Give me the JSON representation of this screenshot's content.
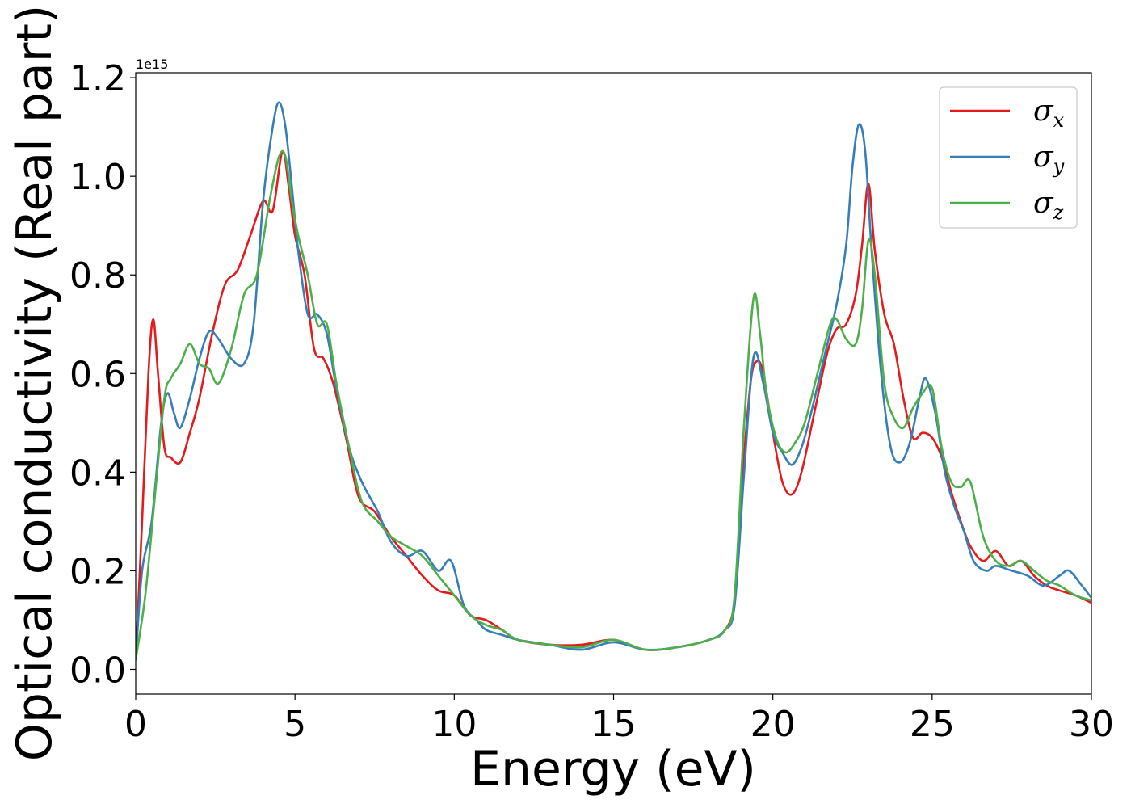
{
  "chart_data": {
    "type": "line",
    "xlabel": "Energy (eV)",
    "ylabel": "Optical conductivity (Real part)",
    "y_offset_label": "1e15",
    "xlim": [
      0,
      30
    ],
    "ylim": [
      -0.05,
      1.21
    ],
    "xticks": [
      0,
      5,
      10,
      15,
      20,
      25,
      30
    ],
    "xtick_labels": [
      "0",
      "5",
      "10",
      "15",
      "20",
      "25",
      "30"
    ],
    "yticks": [
      0.0,
      0.2,
      0.4,
      0.6,
      0.8,
      1.0,
      1.2
    ],
    "ytick_labels": [
      "0.0",
      "0.2",
      "0.4",
      "0.6",
      "0.8",
      "1.0",
      "1.2"
    ],
    "grid": false,
    "legend_position": "top-right",
    "series": [
      {
        "name": "σ",
        "subscript": "x",
        "color": "#e41a1c",
        "x": [
          0,
          0.2,
          0.4,
          0.55,
          0.7,
          0.9,
          1.1,
          1.4,
          1.7,
          2.0,
          2.4,
          2.8,
          3.2,
          3.6,
          4.0,
          4.3,
          4.6,
          4.8,
          5.0,
          5.3,
          5.6,
          5.9,
          6.2,
          6.6,
          7.0,
          7.5,
          8.0,
          8.5,
          9.0,
          9.5,
          10.0,
          10.5,
          11.0,
          11.5,
          12.0,
          13.0,
          14.0,
          15.0,
          16.0,
          17.0,
          18.0,
          18.5,
          18.8,
          19.0,
          19.3,
          19.5,
          19.7,
          20.0,
          20.3,
          20.6,
          20.9,
          21.3,
          21.7,
          22.0,
          22.3,
          22.6,
          22.8,
          23.0,
          23.2,
          23.5,
          23.8,
          24.1,
          24.4,
          24.7,
          25.0,
          25.3,
          25.6,
          25.9,
          26.2,
          26.6,
          27.0,
          27.4,
          27.8,
          28.2,
          28.6,
          29.0,
          29.5,
          30.0
        ],
        "y": [
          0.02,
          0.3,
          0.6,
          0.71,
          0.6,
          0.45,
          0.43,
          0.42,
          0.48,
          0.55,
          0.68,
          0.78,
          0.81,
          0.88,
          0.95,
          0.93,
          1.05,
          0.98,
          0.88,
          0.8,
          0.65,
          0.63,
          0.58,
          0.47,
          0.35,
          0.32,
          0.27,
          0.23,
          0.19,
          0.16,
          0.15,
          0.11,
          0.1,
          0.08,
          0.06,
          0.05,
          0.05,
          0.06,
          0.04,
          0.045,
          0.06,
          0.08,
          0.14,
          0.35,
          0.58,
          0.625,
          0.6,
          0.48,
          0.38,
          0.355,
          0.4,
          0.52,
          0.64,
          0.69,
          0.7,
          0.76,
          0.86,
          0.985,
          0.85,
          0.72,
          0.66,
          0.55,
          0.47,
          0.48,
          0.47,
          0.43,
          0.36,
          0.3,
          0.25,
          0.22,
          0.24,
          0.21,
          0.22,
          0.19,
          0.17,
          0.16,
          0.15,
          0.135
        ]
      },
      {
        "name": "σ",
        "subscript": "y",
        "color": "#377eb8",
        "x": [
          0,
          0.2,
          0.5,
          0.8,
          1.0,
          1.2,
          1.4,
          1.7,
          2.0,
          2.3,
          2.6,
          3.0,
          3.4,
          3.7,
          4.0,
          4.3,
          4.5,
          4.7,
          4.9,
          5.1,
          5.4,
          5.7,
          6.0,
          6.3,
          6.7,
          7.1,
          7.6,
          8.0,
          8.5,
          9.0,
          9.5,
          9.9,
          10.3,
          10.7,
          11.0,
          11.5,
          12.0,
          13.0,
          14.0,
          15.0,
          16.0,
          17.0,
          18.0,
          18.5,
          18.8,
          19.1,
          19.4,
          19.7,
          20.0,
          20.3,
          20.6,
          20.9,
          21.2,
          21.6,
          22.0,
          22.3,
          22.5,
          22.7,
          22.9,
          23.1,
          23.4,
          23.7,
          24.0,
          24.3,
          24.6,
          24.8,
          25.1,
          25.4,
          25.7,
          26.0,
          26.3,
          26.7,
          27.0,
          27.5,
          28.0,
          28.5,
          29.0,
          29.3,
          29.7,
          30.0
        ],
        "y": [
          0.02,
          0.2,
          0.3,
          0.5,
          0.56,
          0.52,
          0.49,
          0.55,
          0.63,
          0.685,
          0.67,
          0.63,
          0.62,
          0.7,
          0.95,
          1.1,
          1.15,
          1.1,
          0.98,
          0.85,
          0.72,
          0.72,
          0.68,
          0.57,
          0.45,
          0.38,
          0.32,
          0.26,
          0.23,
          0.24,
          0.2,
          0.22,
          0.13,
          0.1,
          0.08,
          0.07,
          0.06,
          0.05,
          0.04,
          0.055,
          0.04,
          0.045,
          0.06,
          0.08,
          0.13,
          0.4,
          0.635,
          0.58,
          0.48,
          0.44,
          0.415,
          0.45,
          0.52,
          0.63,
          0.74,
          0.86,
          1.02,
          1.105,
          1.05,
          0.85,
          0.6,
          0.45,
          0.42,
          0.46,
          0.55,
          0.59,
          0.52,
          0.4,
          0.33,
          0.28,
          0.22,
          0.2,
          0.21,
          0.2,
          0.19,
          0.17,
          0.19,
          0.2,
          0.17,
          0.145
        ]
      },
      {
        "name": "σ",
        "subscript": "z",
        "color": "#4daf4a",
        "x": [
          0,
          0.3,
          0.6,
          0.9,
          1.1,
          1.4,
          1.7,
          2.0,
          2.3,
          2.6,
          3.0,
          3.4,
          3.8,
          4.2,
          4.5,
          4.7,
          4.9,
          5.1,
          5.4,
          5.7,
          6.0,
          6.3,
          6.7,
          7.1,
          7.6,
          8.0,
          8.5,
          9.0,
          9.5,
          10.0,
          10.5,
          11.0,
          11.5,
          12.0,
          13.0,
          14.0,
          15.0,
          16.0,
          17.0,
          18.0,
          18.5,
          18.8,
          19.1,
          19.4,
          19.6,
          19.8,
          20.1,
          20.4,
          20.7,
          21.0,
          21.4,
          21.8,
          22.0,
          22.3,
          22.6,
          22.8,
          23.0,
          23.2,
          23.5,
          23.8,
          24.1,
          24.4,
          24.7,
          25.0,
          25.3,
          25.6,
          25.9,
          26.2,
          26.6,
          27.0,
          27.4,
          27.8,
          28.2,
          28.6,
          29.0,
          29.5,
          30.0
        ],
        "y": [
          0.02,
          0.15,
          0.35,
          0.55,
          0.59,
          0.62,
          0.66,
          0.62,
          0.61,
          0.58,
          0.65,
          0.76,
          0.8,
          0.95,
          1.04,
          1.04,
          0.95,
          0.88,
          0.8,
          0.7,
          0.7,
          0.58,
          0.45,
          0.34,
          0.3,
          0.27,
          0.25,
          0.23,
          0.19,
          0.15,
          0.11,
          0.09,
          0.08,
          0.06,
          0.05,
          0.045,
          0.06,
          0.04,
          0.045,
          0.06,
          0.08,
          0.15,
          0.5,
          0.755,
          0.68,
          0.56,
          0.47,
          0.44,
          0.46,
          0.5,
          0.6,
          0.7,
          0.71,
          0.67,
          0.66,
          0.73,
          0.87,
          0.8,
          0.58,
          0.51,
          0.49,
          0.53,
          0.56,
          0.57,
          0.45,
          0.38,
          0.37,
          0.38,
          0.27,
          0.22,
          0.21,
          0.22,
          0.2,
          0.18,
          0.17,
          0.15,
          0.14
        ]
      }
    ]
  }
}
